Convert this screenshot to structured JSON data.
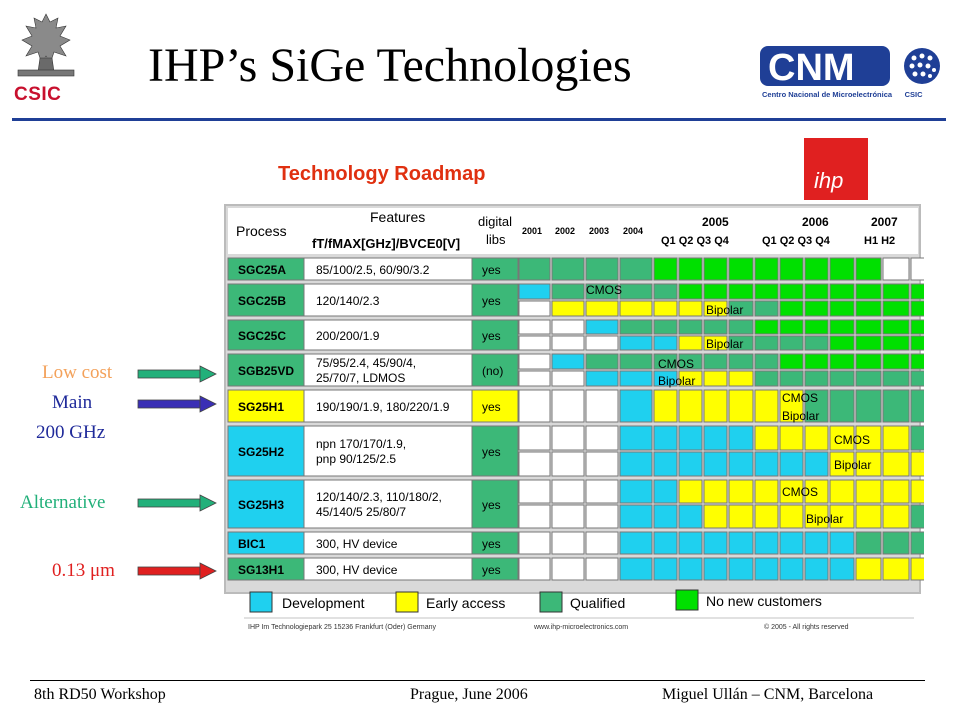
{
  "header": {
    "title": "IHP’s SiGe Technologies",
    "csic_logo_text": "CSIC",
    "cnm_logo_text": "CNM",
    "cnm_subtitle": "Centro Nacional de Microelectrónica",
    "cnm_csic": "CSIC"
  },
  "arrows": [
    {
      "text": "Low cost",
      "color": "#f3a15a",
      "arrow_color": "#22b07a",
      "row": 3
    },
    {
      "text": "Main",
      "text2": "200 GHz",
      "color": "#1f2a9a",
      "arrow_color": "#3a2fb5",
      "row": 4
    },
    {
      "text": "Alternative",
      "color": "#22b07a",
      "arrow_color": "#22b07a",
      "row": 6
    },
    {
      "text": "0.13 μm",
      "color": "#e02020",
      "arrow_color": "#e02020",
      "row": 8
    }
  ],
  "roadmap": {
    "heading": "Technology Roadmap",
    "ihp_logo": "ihp",
    "col_process": "Process",
    "col_features_top": "Features",
    "col_features_bottom": "fT/fMAX[GHz]/BVCE0[V]",
    "col_digital": "digital",
    "col_libs": "libs",
    "years": [
      "2001",
      "2002",
      "2003",
      "2004"
    ],
    "year_2005": "2005",
    "year_2006": "2006",
    "year_2007": "2007",
    "quarters": "Q1 Q2 Q3 Q4",
    "halves": "H1 H2",
    "rows": [
      {
        "process": "SGC25A",
        "features": [
          "85/100/2.5, 60/90/3.2"
        ],
        "libs": "yes"
      },
      {
        "process": "SGC25B",
        "features": [
          "120/140/2.3"
        ],
        "libs": "yes"
      },
      {
        "process": "SGC25C",
        "features": [
          "200/200/1.9"
        ],
        "libs": "yes"
      },
      {
        "process": "SGB25VD",
        "features": [
          "75/95/2.4, 45/90/4,",
          "25/70/7, LDMOS"
        ],
        "libs": "(no)"
      },
      {
        "process": "SG25H1",
        "features": [
          "190/190/1.9, 180/220/1.9"
        ],
        "libs": "yes"
      },
      {
        "process": "SG25H2",
        "features": [
          "npn 170/170/1.9,",
          "pnp 90/125/2.5"
        ],
        "libs": "yes"
      },
      {
        "process": "SG25H3",
        "features": [
          "120/140/2.3, 110/180/2,",
          "45/140/5 25/80/7"
        ],
        "libs": "yes"
      },
      {
        "process": "BIC1",
        "features": [
          "300, HV device"
        ],
        "libs": "yes"
      },
      {
        "process": "SG13H1",
        "features": [
          "300, HV device"
        ],
        "libs": "yes"
      }
    ],
    "labels": {
      "cmos": "CMOS",
      "bipolar": "Bipolar"
    },
    "legend": [
      "Development",
      "Early access",
      "Qualified",
      "No new customers"
    ],
    "footer_left": "IHP  Im Technologiepark 25  15236 Frankfurt (Oder) Germany",
    "footer_mid": "www.ihp-microelectronics.com",
    "footer_right": "© 2005 - All rights reserved"
  },
  "colors": {
    "cyan": "#1fd0ef",
    "yellow": "#ffff00",
    "green": "#3cb878",
    "bright_green": "#00e000",
    "process_cyan": "#1fd0ef",
    "header_text_red": "#e03010"
  },
  "footer": {
    "left": "8th RD50 Workshop",
    "center": "Prague, June 2006",
    "right": "Miguel Ullán – CNM, Barcelona"
  }
}
